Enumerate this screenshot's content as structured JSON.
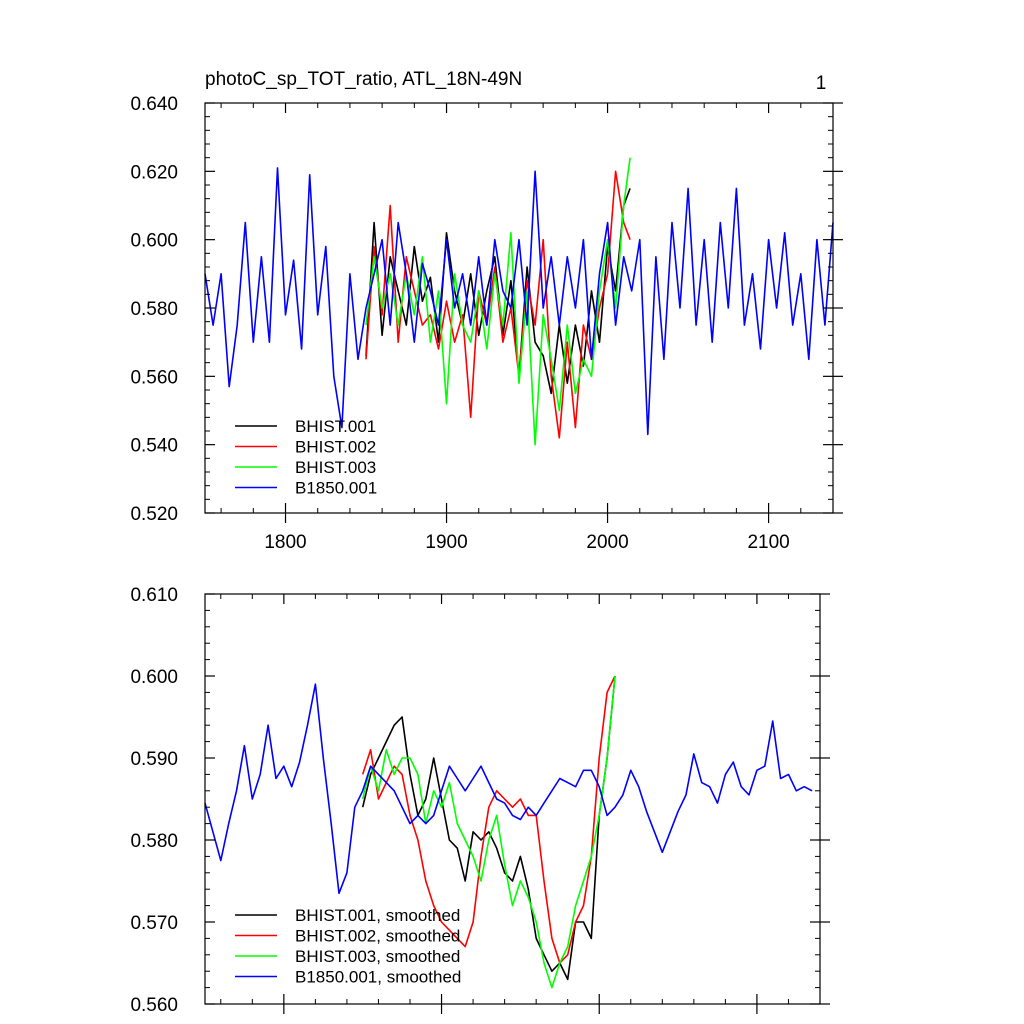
{
  "chart_data": [
    {
      "type": "line",
      "title": "photoC_sp_TOT_ratio, ATL_18N-49N",
      "corner_label": "1",
      "xlim": [
        1750,
        2140
      ],
      "ylim": [
        0.52,
        0.64
      ],
      "x_ticks": [
        1800,
        1900,
        2000,
        2100
      ],
      "x_tick_labels": [
        "1800",
        "1900",
        "2000",
        "2100"
      ],
      "y_ticks": [
        0.52,
        0.54,
        0.56,
        0.58,
        0.6,
        0.62,
        0.64
      ],
      "y_tick_labels": [
        "0.520",
        "0.540",
        "0.560",
        "0.580",
        "0.600",
        "0.620",
        "0.640"
      ],
      "legend_position": "bottom-left",
      "series": [
        {
          "name": "BHIST.001",
          "color": "#000000",
          "x": [
            1850,
            1855,
            1860,
            1865,
            1870,
            1875,
            1880,
            1885,
            1890,
            1895,
            1900,
            1905,
            1910,
            1915,
            1920,
            1925,
            1930,
            1935,
            1940,
            1945,
            1950,
            1955,
            1960,
            1965,
            1970,
            1975,
            1980,
            1985,
            1990,
            1995,
            2000,
            2005,
            2010,
            2014
          ],
          "y": [
            0.566,
            0.605,
            0.572,
            0.595,
            0.585,
            0.575,
            0.598,
            0.582,
            0.589,
            0.57,
            0.602,
            0.585,
            0.575,
            0.59,
            0.572,
            0.585,
            0.595,
            0.572,
            0.588,
            0.56,
            0.592,
            0.57,
            0.566,
            0.555,
            0.575,
            0.558,
            0.575,
            0.563,
            0.585,
            0.57,
            0.598,
            0.585,
            0.61,
            0.615
          ]
        },
        {
          "name": "BHIST.002",
          "color": "#ff0000",
          "x": [
            1850,
            1855,
            1860,
            1865,
            1870,
            1875,
            1880,
            1885,
            1890,
            1895,
            1900,
            1905,
            1910,
            1915,
            1920,
            1925,
            1930,
            1935,
            1940,
            1945,
            1950,
            1955,
            1960,
            1965,
            1970,
            1975,
            1980,
            1985,
            1990,
            1995,
            2000,
            2005,
            2010,
            2014
          ],
          "y": [
            0.565,
            0.598,
            0.578,
            0.61,
            0.57,
            0.595,
            0.585,
            0.575,
            0.578,
            0.568,
            0.582,
            0.57,
            0.578,
            0.548,
            0.585,
            0.575,
            0.592,
            0.57,
            0.58,
            0.56,
            0.588,
            0.575,
            0.6,
            0.56,
            0.542,
            0.57,
            0.545,
            0.575,
            0.565,
            0.58,
            0.59,
            0.62,
            0.605,
            0.6
          ]
        },
        {
          "name": "BHIST.003",
          "color": "#00ff00",
          "x": [
            1850,
            1855,
            1860,
            1865,
            1870,
            1875,
            1880,
            1885,
            1890,
            1895,
            1900,
            1905,
            1910,
            1915,
            1920,
            1925,
            1930,
            1935,
            1940,
            1945,
            1950,
            1955,
            1960,
            1965,
            1970,
            1975,
            1980,
            1985,
            1990,
            1995,
            2000,
            2005,
            2010,
            2014
          ],
          "y": [
            0.575,
            0.595,
            0.58,
            0.59,
            0.575,
            0.59,
            0.578,
            0.595,
            0.57,
            0.585,
            0.552,
            0.59,
            0.575,
            0.57,
            0.585,
            0.568,
            0.59,
            0.575,
            0.602,
            0.558,
            0.585,
            0.54,
            0.578,
            0.565,
            0.55,
            0.575,
            0.555,
            0.565,
            0.56,
            0.585,
            0.6,
            0.58,
            0.61,
            0.624
          ]
        },
        {
          "name": "B1850.001",
          "color": "#0000ff",
          "x": [
            1750,
            1755,
            1760,
            1765,
            1770,
            1775,
            1780,
            1785,
            1790,
            1795,
            1800,
            1805,
            1810,
            1815,
            1820,
            1825,
            1830,
            1835,
            1840,
            1845,
            1850,
            1855,
            1860,
            1865,
            1870,
            1875,
            1880,
            1885,
            1890,
            1895,
            1900,
            1905,
            1910,
            1915,
            1920,
            1925,
            1930,
            1935,
            1940,
            1945,
            1950,
            1955,
            1960,
            1965,
            1970,
            1975,
            1980,
            1985,
            1990,
            1995,
            2000,
            2005,
            2010,
            2015,
            2020,
            2025,
            2030,
            2035,
            2040,
            2045,
            2050,
            2055,
            2060,
            2065,
            2070,
            2075,
            2080,
            2085,
            2090,
            2095,
            2100,
            2105,
            2110,
            2115,
            2120,
            2125,
            2130,
            2135,
            2140
          ],
          "y": [
            0.59,
            0.575,
            0.59,
            0.557,
            0.575,
            0.605,
            0.57,
            0.595,
            0.57,
            0.621,
            0.578,
            0.594,
            0.568,
            0.619,
            0.578,
            0.598,
            0.56,
            0.545,
            0.59,
            0.565,
            0.58,
            0.59,
            0.6,
            0.575,
            0.605,
            0.59,
            0.57,
            0.593,
            0.585,
            0.575,
            0.6,
            0.58,
            0.59,
            0.575,
            0.595,
            0.575,
            0.6,
            0.585,
            0.58,
            0.6,
            0.575,
            0.62,
            0.58,
            0.595,
            0.575,
            0.595,
            0.58,
            0.6,
            0.565,
            0.59,
            0.605,
            0.575,
            0.595,
            0.585,
            0.6,
            0.543,
            0.595,
            0.565,
            0.605,
            0.58,
            0.615,
            0.575,
            0.6,
            0.57,
            0.605,
            0.58,
            0.615,
            0.575,
            0.59,
            0.568,
            0.6,
            0.58,
            0.602,
            0.575,
            0.59,
            0.565,
            0.6,
            0.575,
            0.605
          ]
        }
      ]
    },
    {
      "type": "line",
      "xlim": [
        1750,
        2140
      ],
      "ylim": [
        0.56,
        0.61
      ],
      "x_ticks": [
        1800,
        1900,
        2000,
        2100
      ],
      "y_ticks": [
        0.56,
        0.57,
        0.58,
        0.59,
        0.6,
        0.61
      ],
      "y_tick_labels": [
        "0.560",
        "0.570",
        "0.580",
        "0.590",
        "0.600",
        "0.610"
      ],
      "legend_position": "bottom-left",
      "series": [
        {
          "name": "BHIST.001, smoothed",
          "color": "#000000",
          "x": [
            1850,
            1855,
            1860,
            1865,
            1870,
            1875,
            1880,
            1885,
            1890,
            1895,
            1900,
            1905,
            1910,
            1915,
            1920,
            1925,
            1930,
            1935,
            1940,
            1945,
            1950,
            1955,
            1960,
            1965,
            1970,
            1975,
            1980,
            1985,
            1990,
            1995,
            2000,
            2005,
            2010
          ],
          "y": [
            0.584,
            0.588,
            0.59,
            0.592,
            0.594,
            0.595,
            0.588,
            0.583,
            0.585,
            0.59,
            0.585,
            0.58,
            0.579,
            0.575,
            0.581,
            0.58,
            0.581,
            0.579,
            0.576,
            0.575,
            0.578,
            0.574,
            0.568,
            0.566,
            0.564,
            0.565,
            0.563,
            0.57,
            0.57,
            0.568,
            0.583,
            0.59,
            0.6
          ]
        },
        {
          "name": "BHIST.002, smoothed",
          "color": "#ff0000",
          "x": [
            1850,
            1855,
            1860,
            1865,
            1870,
            1875,
            1880,
            1885,
            1890,
            1895,
            1900,
            1905,
            1910,
            1915,
            1920,
            1925,
            1930,
            1935,
            1940,
            1945,
            1950,
            1955,
            1960,
            1965,
            1970,
            1975,
            1980,
            1985,
            1990,
            1995,
            2000,
            2005,
            2010
          ],
          "y": [
            0.588,
            0.591,
            0.585,
            0.587,
            0.589,
            0.588,
            0.583,
            0.58,
            0.575,
            0.572,
            0.57,
            0.569,
            0.568,
            0.567,
            0.57,
            0.578,
            0.584,
            0.586,
            0.585,
            0.584,
            0.585,
            0.583,
            0.583,
            0.575,
            0.568,
            0.565,
            0.566,
            0.57,
            0.572,
            0.578,
            0.59,
            0.598,
            0.6
          ]
        },
        {
          "name": "BHIST.003, smoothed",
          "color": "#00ff00",
          "x": [
            1850,
            1855,
            1860,
            1865,
            1870,
            1875,
            1880,
            1885,
            1890,
            1895,
            1900,
            1905,
            1910,
            1915,
            1920,
            1925,
            1930,
            1935,
            1940,
            1945,
            1950,
            1955,
            1960,
            1965,
            1970,
            1975,
            1980,
            1985,
            1990,
            1995,
            2000,
            2005,
            2010
          ],
          "y": [
            0.585,
            0.589,
            0.586,
            0.591,
            0.588,
            0.59,
            0.59,
            0.588,
            0.582,
            0.586,
            0.584,
            0.587,
            0.582,
            0.58,
            0.578,
            0.575,
            0.58,
            0.583,
            0.577,
            0.572,
            0.575,
            0.573,
            0.57,
            0.565,
            0.562,
            0.565,
            0.567,
            0.572,
            0.575,
            0.578,
            0.583,
            0.59,
            0.6
          ]
        },
        {
          "name": "B1850.001, smoothed",
          "color": "#0000ff",
          "x": [
            1750,
            1755,
            1760,
            1765,
            1770,
            1775,
            1780,
            1785,
            1790,
            1795,
            1800,
            1805,
            1810,
            1815,
            1820,
            1825,
            1830,
            1835,
            1840,
            1845,
            1850,
            1855,
            1860,
            1865,
            1870,
            1875,
            1880,
            1885,
            1890,
            1895,
            1900,
            1905,
            1910,
            1915,
            1920,
            1925,
            1930,
            1935,
            1940,
            1945,
            1950,
            1955,
            1960,
            1965,
            1970,
            1975,
            1980,
            1985,
            1990,
            1995,
            2000,
            2005,
            2010,
            2015,
            2020,
            2025,
            2030,
            2035,
            2040,
            2045,
            2050,
            2055,
            2060,
            2065,
            2070,
            2075,
            2080,
            2085,
            2090,
            2095,
            2100,
            2105,
            2110,
            2115,
            2120,
            2125,
            2130,
            2135
          ],
          "y": [
            0.5845,
            0.581,
            0.5775,
            0.582,
            0.586,
            0.5915,
            0.585,
            0.588,
            0.594,
            0.5875,
            0.589,
            0.5865,
            0.5895,
            0.594,
            0.599,
            0.59,
            0.582,
            0.5735,
            0.576,
            0.584,
            0.586,
            0.589,
            0.588,
            0.587,
            0.586,
            0.584,
            0.582,
            0.583,
            0.582,
            0.583,
            0.586,
            0.589,
            0.5875,
            0.586,
            0.5875,
            0.589,
            0.587,
            0.585,
            0.5845,
            0.583,
            0.5825,
            0.584,
            0.583,
            0.5845,
            0.586,
            0.5875,
            0.587,
            0.5865,
            0.5885,
            0.5885,
            0.5865,
            0.583,
            0.584,
            0.5855,
            0.5885,
            0.5865,
            0.5835,
            0.581,
            0.5785,
            0.581,
            0.5835,
            0.5855,
            0.5905,
            0.587,
            0.5865,
            0.5845,
            0.588,
            0.5895,
            0.5865,
            0.5855,
            0.5885,
            0.589,
            0.5945,
            0.5875,
            0.588,
            0.586,
            0.5865,
            0.586
          ]
        }
      ]
    }
  ]
}
